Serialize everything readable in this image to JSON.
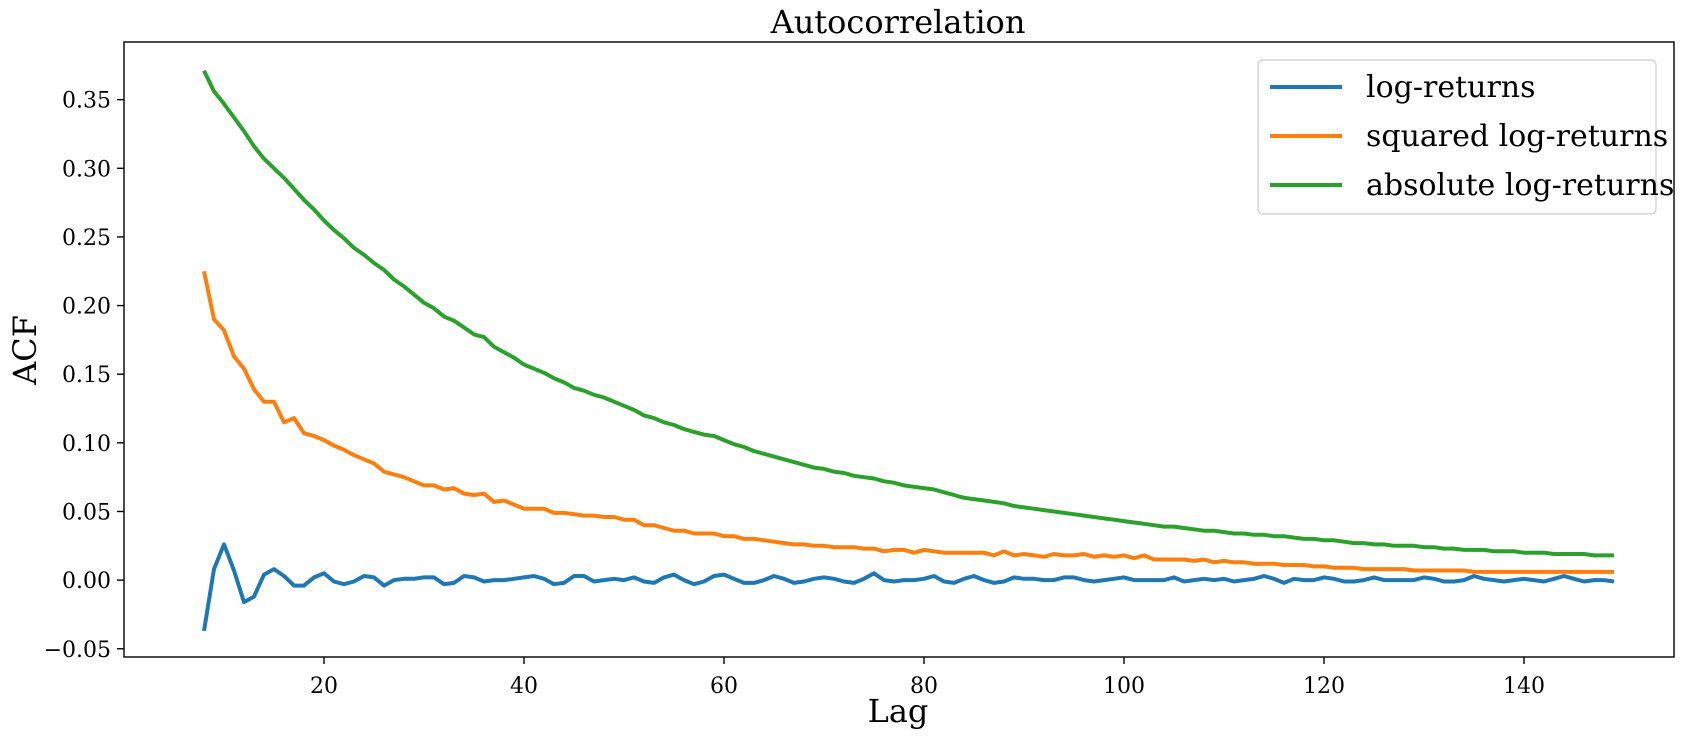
{
  "chart_data": {
    "type": "line",
    "title": "Autocorrelation",
    "xlabel": "Lag",
    "ylabel": "ACF",
    "xlim": [
      0,
      155
    ],
    "ylim": [
      -0.056,
      0.392
    ],
    "xticks": [
      20,
      40,
      60,
      80,
      100,
      120,
      140
    ],
    "yticks": [
      -0.05,
      0.0,
      0.05,
      0.1,
      0.15,
      0.2,
      0.25,
      0.3,
      0.35
    ],
    "ytick_labels": [
      "−0.05",
      "0.00",
      "0.05",
      "0.10",
      "0.15",
      "0.20",
      "0.25",
      "0.30",
      "0.35"
    ],
    "grid": false,
    "legend_position": "top-right",
    "x": [
      8,
      9,
      10,
      11,
      12,
      13,
      14,
      15,
      16,
      17,
      18,
      19,
      20,
      21,
      22,
      23,
      24,
      25,
      26,
      27,
      28,
      29,
      30,
      31,
      32,
      33,
      34,
      35,
      36,
      37,
      38,
      39,
      40,
      41,
      42,
      43,
      44,
      45,
      46,
      47,
      48,
      49,
      50,
      51,
      52,
      53,
      54,
      55,
      56,
      57,
      58,
      59,
      60,
      61,
      62,
      63,
      64,
      65,
      66,
      67,
      68,
      69,
      70,
      71,
      72,
      73,
      74,
      75,
      76,
      77,
      78,
      79,
      80,
      81,
      82,
      83,
      84,
      85,
      86,
      87,
      88,
      89,
      90,
      91,
      92,
      93,
      94,
      95,
      96,
      97,
      98,
      99,
      100,
      101,
      102,
      103,
      104,
      105,
      106,
      107,
      108,
      109,
      110,
      111,
      112,
      113,
      114,
      115,
      116,
      117,
      118,
      119,
      120,
      121,
      122,
      123,
      124,
      125,
      126,
      127,
      128,
      129,
      130,
      131,
      132,
      133,
      134,
      135,
      136,
      137,
      138,
      139,
      140,
      141,
      142,
      143,
      144,
      145,
      146,
      147,
      148,
      149
    ],
    "series": [
      {
        "name": "log-returns",
        "color": "#1f77b4",
        "values": [
          -0.037,
          0.008,
          0.026,
          0.007,
          -0.016,
          -0.012,
          0.004,
          0.008,
          0.003,
          -0.004,
          -0.004,
          0.002,
          0.005,
          -0.001,
          -0.003,
          -0.001,
          0.003,
          0.002,
          -0.004,
          0.0,
          0.001,
          0.001,
          0.002,
          0.002,
          -0.003,
          -0.002,
          0.003,
          0.002,
          -0.001,
          0.0,
          0.0,
          0.001,
          0.002,
          0.003,
          0.001,
          -0.003,
          -0.002,
          0.003,
          0.003,
          -0.001,
          0.0,
          0.001,
          0.0,
          0.002,
          -0.001,
          -0.002,
          0.002,
          0.004,
          0.0,
          -0.003,
          -0.001,
          0.003,
          0.004,
          0.001,
          -0.002,
          -0.002,
          0.0,
          0.003,
          0.001,
          -0.002,
          -0.001,
          0.001,
          0.002,
          0.001,
          -0.001,
          -0.002,
          0.001,
          0.005,
          0.0,
          -0.001,
          0.0,
          0.0,
          0.001,
          0.003,
          -0.001,
          -0.002,
          0.001,
          0.003,
          0.0,
          -0.002,
          -0.001,
          0.002,
          0.001,
          0.001,
          0.0,
          0.0,
          0.002,
          0.002,
          0.0,
          -0.001,
          0.0,
          0.001,
          0.002,
          0.0,
          0.0,
          0.0,
          0.0,
          0.002,
          -0.001,
          0.0,
          0.001,
          0.0,
          0.001,
          -0.001,
          0.0,
          0.001,
          0.003,
          0.001,
          -0.002,
          0.001,
          0.0,
          0.0,
          0.002,
          0.001,
          -0.001,
          -0.001,
          0.0,
          0.002,
          0.0,
          0.0,
          0.0,
          0.0,
          0.002,
          0.001,
          -0.001,
          -0.001,
          0.0,
          0.003,
          0.001,
          0.0,
          -0.001,
          0.0,
          0.001,
          0.0,
          -0.001,
          0.001,
          0.003,
          0.001,
          -0.001,
          0.0,
          0.0,
          -0.001
        ]
      },
      {
        "name": "squared log-returns",
        "color": "#ff7f0e",
        "values": [
          0.225,
          0.19,
          0.182,
          0.163,
          0.154,
          0.139,
          0.13,
          0.13,
          0.115,
          0.118,
          0.107,
          0.105,
          0.102,
          0.098,
          0.095,
          0.091,
          0.088,
          0.085,
          0.079,
          0.077,
          0.075,
          0.072,
          0.069,
          0.069,
          0.066,
          0.067,
          0.063,
          0.062,
          0.063,
          0.057,
          0.058,
          0.055,
          0.052,
          0.052,
          0.052,
          0.049,
          0.049,
          0.048,
          0.047,
          0.047,
          0.046,
          0.046,
          0.044,
          0.044,
          0.04,
          0.04,
          0.038,
          0.036,
          0.036,
          0.034,
          0.034,
          0.034,
          0.032,
          0.032,
          0.03,
          0.03,
          0.029,
          0.028,
          0.027,
          0.026,
          0.026,
          0.025,
          0.025,
          0.024,
          0.024,
          0.024,
          0.023,
          0.023,
          0.021,
          0.022,
          0.022,
          0.02,
          0.022,
          0.021,
          0.02,
          0.02,
          0.02,
          0.02,
          0.02,
          0.018,
          0.021,
          0.018,
          0.019,
          0.018,
          0.017,
          0.019,
          0.018,
          0.018,
          0.019,
          0.017,
          0.018,
          0.017,
          0.018,
          0.016,
          0.018,
          0.015,
          0.015,
          0.015,
          0.015,
          0.014,
          0.015,
          0.013,
          0.014,
          0.013,
          0.013,
          0.012,
          0.012,
          0.012,
          0.011,
          0.011,
          0.011,
          0.01,
          0.01,
          0.009,
          0.009,
          0.009,
          0.008,
          0.008,
          0.008,
          0.008,
          0.008,
          0.007,
          0.007,
          0.007,
          0.007,
          0.007,
          0.007,
          0.006,
          0.006,
          0.006,
          0.006,
          0.006,
          0.006,
          0.006,
          0.006,
          0.006,
          0.006,
          0.006,
          0.006,
          0.006,
          0.006,
          0.006
        ]
      },
      {
        "name": "absolute log-returns",
        "color": "#2ca02c",
        "values": [
          0.371,
          0.356,
          0.347,
          0.337,
          0.327,
          0.316,
          0.307,
          0.3,
          0.293,
          0.285,
          0.277,
          0.27,
          0.262,
          0.255,
          0.249,
          0.242,
          0.237,
          0.231,
          0.226,
          0.219,
          0.214,
          0.208,
          0.202,
          0.198,
          0.192,
          0.189,
          0.184,
          0.179,
          0.177,
          0.17,
          0.166,
          0.162,
          0.157,
          0.154,
          0.151,
          0.147,
          0.144,
          0.14,
          0.138,
          0.135,
          0.133,
          0.13,
          0.127,
          0.124,
          0.12,
          0.118,
          0.115,
          0.113,
          0.11,
          0.108,
          0.106,
          0.105,
          0.102,
          0.099,
          0.097,
          0.094,
          0.092,
          0.09,
          0.088,
          0.086,
          0.084,
          0.082,
          0.081,
          0.079,
          0.078,
          0.076,
          0.075,
          0.074,
          0.072,
          0.071,
          0.069,
          0.068,
          0.067,
          0.066,
          0.064,
          0.062,
          0.06,
          0.059,
          0.058,
          0.057,
          0.056,
          0.054,
          0.053,
          0.052,
          0.051,
          0.05,
          0.049,
          0.048,
          0.047,
          0.046,
          0.045,
          0.044,
          0.043,
          0.042,
          0.041,
          0.04,
          0.039,
          0.039,
          0.038,
          0.037,
          0.036,
          0.036,
          0.035,
          0.034,
          0.034,
          0.033,
          0.033,
          0.032,
          0.032,
          0.031,
          0.03,
          0.03,
          0.029,
          0.029,
          0.028,
          0.027,
          0.027,
          0.026,
          0.026,
          0.025,
          0.025,
          0.025,
          0.024,
          0.024,
          0.023,
          0.023,
          0.022,
          0.022,
          0.022,
          0.021,
          0.021,
          0.021,
          0.02,
          0.02,
          0.02,
          0.019,
          0.019,
          0.019,
          0.019,
          0.018,
          0.018,
          0.018
        ]
      }
    ]
  }
}
